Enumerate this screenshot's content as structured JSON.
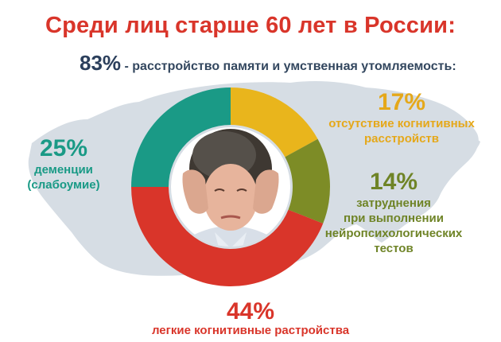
{
  "title": "Среди лиц старше 60 лет в России:",
  "subtitle": {
    "percent": "83%",
    "text": "- расстройство памяти и умственная утомляемость:"
  },
  "colors": {
    "title": "#d9352a",
    "seg_no_disorder": "#e9b51c",
    "seg_neuropsych": "#7d8c26",
    "seg_mild": "#d9352a",
    "seg_dementia": "#1a9a86",
    "map": "#d3dbe2"
  },
  "chart_data": {
    "type": "pie",
    "slices": [
      {
        "label": "отсутствие когнитивных расстройств",
        "percent_label": "17%",
        "value": 17,
        "color": "#e9b51c"
      },
      {
        "label": "затруднения при выполнении нейропсихологических тестов",
        "percent_label": "14%",
        "value": 14,
        "color": "#7d8c26"
      },
      {
        "label": "легкие когнитивные растройства",
        "percent_label": "44%",
        "value": 44,
        "color": "#d9352a"
      },
      {
        "label": "деменции (слабоумие)",
        "percent_label": "25%",
        "value": 25,
        "color": "#1a9a86"
      }
    ]
  },
  "labels": {
    "no_disorder": {
      "pct": "17%",
      "lines": [
        "отсутствие когнитивных",
        "расстройств"
      ]
    },
    "neuropsych": {
      "pct": "14%",
      "lines": [
        "затруднения",
        "при выполнении",
        "нейропсихологических",
        "тестов"
      ]
    },
    "dementia": {
      "pct": "25%",
      "lines": [
        "деменции",
        "(слабоумие)"
      ]
    },
    "mild": {
      "pct": "44%",
      "lines": [
        "легкие когнитивные растройства"
      ]
    }
  }
}
